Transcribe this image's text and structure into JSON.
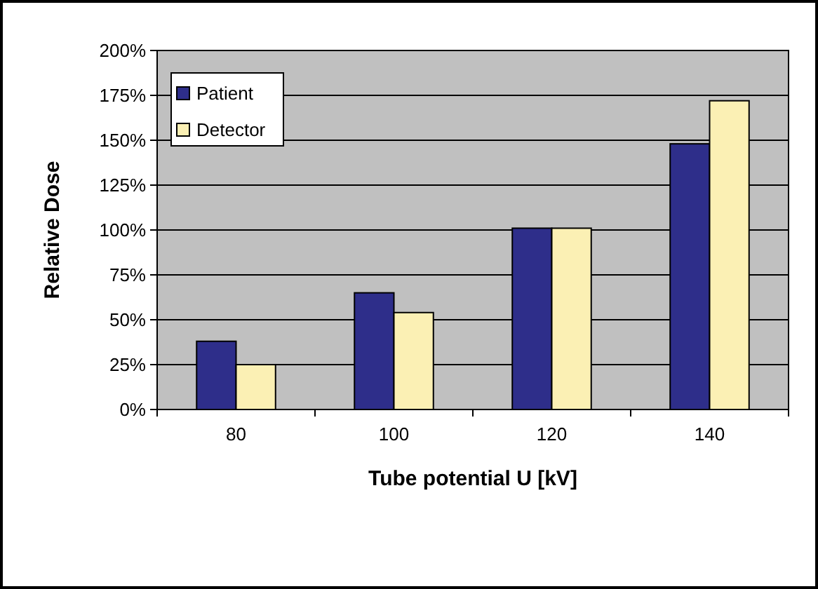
{
  "chart_data": {
    "type": "bar",
    "xlabel": "Tube potential U [kV]",
    "ylabel": "Relative Dose",
    "categories": [
      "80",
      "100",
      "120",
      "140"
    ],
    "series": [
      {
        "name": "Patient",
        "color": "#2e2e8a",
        "values": [
          38,
          65,
          101,
          148
        ]
      },
      {
        "name": "Detector",
        "color": "#fbf0b4",
        "values": [
          25,
          54,
          101,
          172
        ]
      }
    ],
    "ylim": [
      0,
      200
    ],
    "yticks": [
      {
        "value": 0,
        "label": "0%"
      },
      {
        "value": 25,
        "label": "25%"
      },
      {
        "value": 50,
        "label": "50%"
      },
      {
        "value": 75,
        "label": "75%"
      },
      {
        "value": 100,
        "label": "100%"
      },
      {
        "value": 125,
        "label": "125%"
      },
      {
        "value": 150,
        "label": "150%"
      },
      {
        "value": 175,
        "label": "175%"
      },
      {
        "value": 200,
        "label": "200%"
      }
    ],
    "grid": "y",
    "legend": "top left"
  }
}
